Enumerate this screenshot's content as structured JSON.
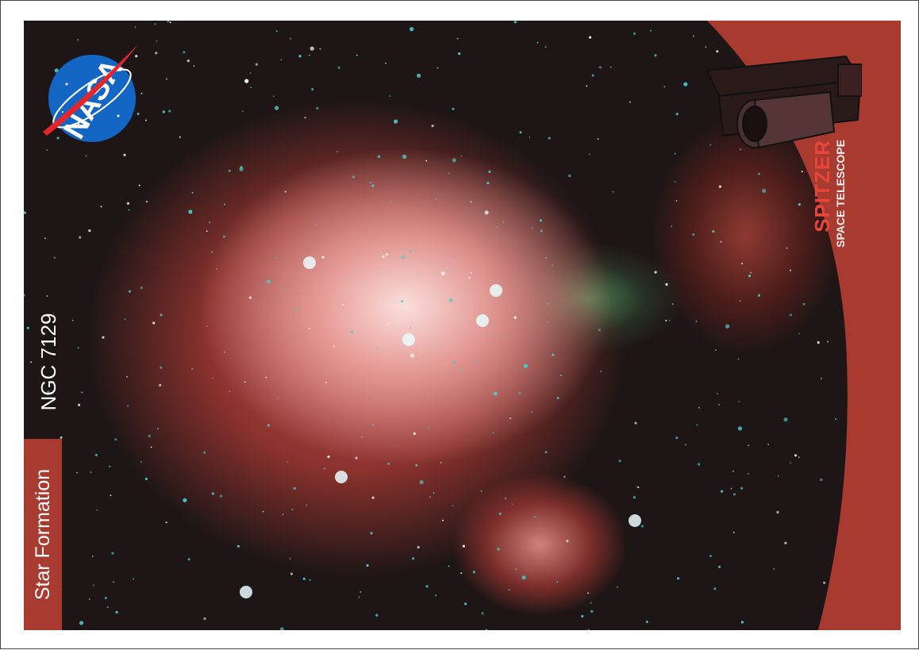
{
  "card": {
    "object_name": "NGC 7129",
    "category": "Star Formation"
  },
  "branding": {
    "agency_logo": "NASA",
    "mission_name": "SPITZER",
    "mission_subtitle": "SPACE TELESCOPE",
    "telescope_icon": "spitzer-telescope-icon"
  },
  "colors": {
    "frame_red": "#a83a30",
    "accent_red": "#e8463a",
    "nasa_blue": "#1466c4",
    "space_bg": "#1e1616",
    "border": "#444444"
  }
}
